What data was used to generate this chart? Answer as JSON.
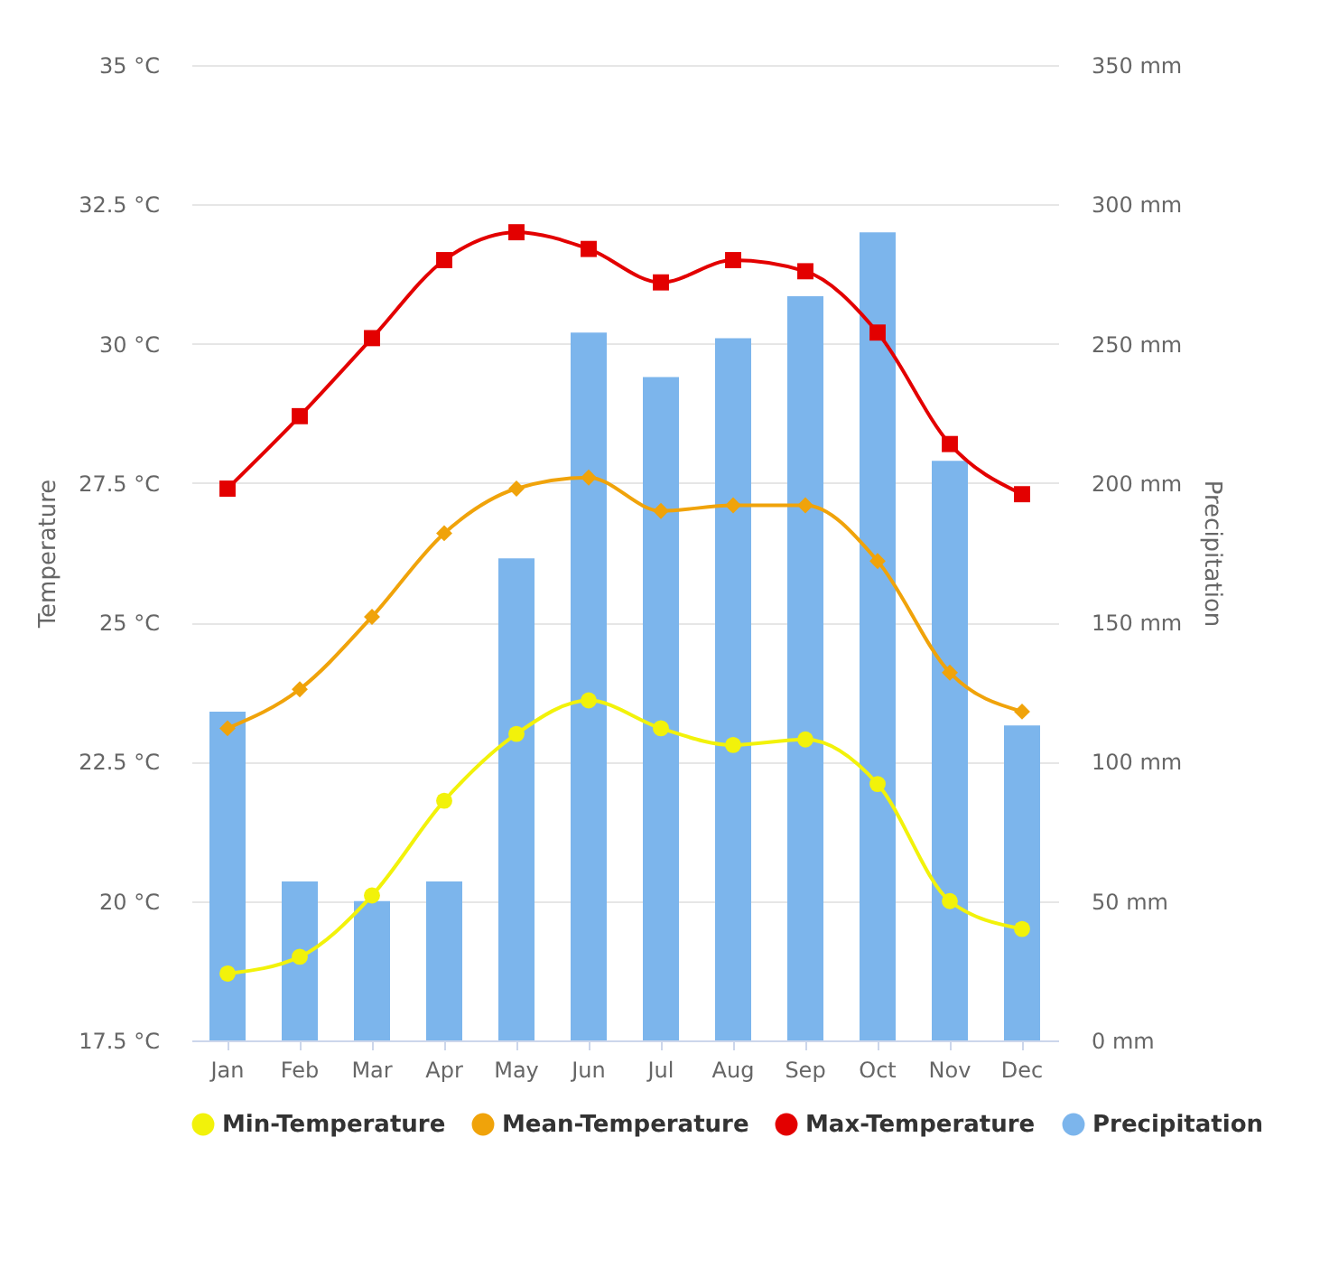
{
  "chart_data": {
    "type": "line",
    "categories": [
      "Jan",
      "Feb",
      "Mar",
      "Apr",
      "May",
      "Jun",
      "Jul",
      "Aug",
      "Sep",
      "Oct",
      "Nov",
      "Dec"
    ],
    "ylabel": "Temperature",
    "y2label": "Precipitation",
    "ylim": [
      17.5,
      35
    ],
    "yticks": [
      {
        "value": 17.5,
        "label": "17.5 °C"
      },
      {
        "value": 20,
        "label": "20 °C"
      },
      {
        "value": 22.5,
        "label": "22.5 °C"
      },
      {
        "value": 25,
        "label": "25 °C"
      },
      {
        "value": 27.5,
        "label": "27.5 °C"
      },
      {
        "value": 30,
        "label": "30 °C"
      },
      {
        "value": 32.5,
        "label": "32.5 °C"
      },
      {
        "value": 35,
        "label": "35 °C"
      }
    ],
    "y2lim": [
      0,
      350
    ],
    "y2ticks": [
      {
        "value": 0,
        "label": "0 mm"
      },
      {
        "value": 50,
        "label": "50 mm"
      },
      {
        "value": 100,
        "label": "100 mm"
      },
      {
        "value": 150,
        "label": "150 mm"
      },
      {
        "value": 200,
        "label": "200 mm"
      },
      {
        "value": 250,
        "label": "250 mm"
      },
      {
        "value": 300,
        "label": "300 mm"
      },
      {
        "value": 350,
        "label": "350 mm"
      }
    ],
    "grid": "y",
    "legend": "bottom",
    "series": [
      {
        "name": "Min-Temperature",
        "marker": "circle",
        "color": "#f2f20a",
        "values": [
          18.7,
          19.0,
          20.1,
          21.8,
          23.0,
          23.6,
          23.1,
          22.8,
          22.9,
          22.1,
          20.0,
          19.5
        ]
      },
      {
        "name": "Mean-Temperature",
        "marker": "diamond",
        "color": "#f0a30a",
        "values": [
          23.1,
          23.8,
          25.1,
          26.6,
          27.4,
          27.6,
          27.0,
          27.1,
          27.1,
          26.1,
          24.1,
          23.4
        ]
      },
      {
        "name": "Max-Temperature",
        "marker": "square",
        "color": "#e30000",
        "values": [
          27.4,
          28.7,
          30.1,
          31.5,
          32.0,
          31.7,
          31.1,
          31.5,
          31.3,
          30.2,
          28.2,
          27.3
        ]
      },
      {
        "name": "Precipitation",
        "type": "bar",
        "axis": "y2",
        "color": "#7cb5ec",
        "values": [
          118,
          57,
          50,
          57,
          173,
          254,
          238,
          252,
          267,
          290,
          208,
          113
        ]
      }
    ]
  }
}
